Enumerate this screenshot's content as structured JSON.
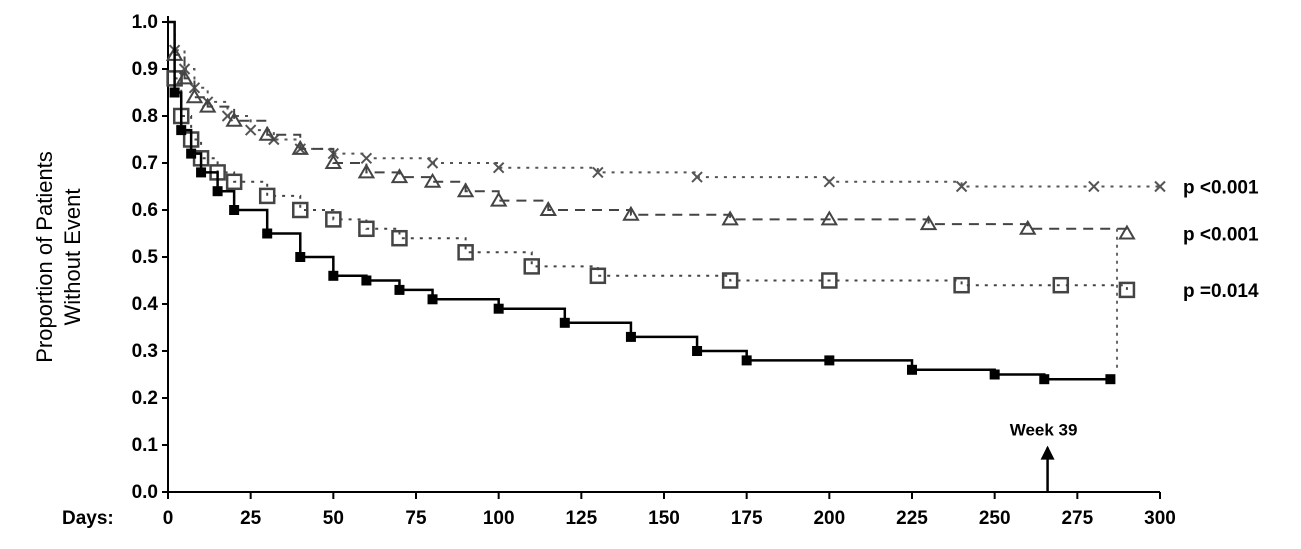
{
  "chart_data": {
    "type": "line",
    "title": "",
    "xlabel": "Days",
    "ylabel_lines": [
      "Proportion of Patients",
      "Without Event"
    ],
    "xlim": [
      0,
      300
    ],
    "ylim": [
      0.0,
      1.0
    ],
    "x_ticks": [
      0,
      25,
      50,
      75,
      100,
      125,
      150,
      175,
      200,
      225,
      250,
      275,
      300
    ],
    "x_tick_labels": [
      "0",
      "25",
      "50",
      "75",
      "100",
      "125",
      "150",
      "175",
      "200",
      "225",
      "250",
      "275",
      "300"
    ],
    "y_ticks": [
      0.0,
      0.1,
      0.2,
      0.3,
      0.4,
      0.5,
      0.6,
      0.7,
      0.8,
      0.9,
      1.0
    ],
    "y_tick_labels": [
      "0.0",
      "0.1",
      "0.2",
      "0.3",
      "0.4",
      "0.5",
      "0.6",
      "0.7",
      "0.8",
      "0.9",
      "1.0"
    ],
    "grid": false,
    "legend": "none",
    "series": [
      {
        "style": "dotted",
        "marker": "x",
        "color": "#555555",
        "x": [
          0,
          2,
          5,
          8,
          12,
          18,
          25,
          32,
          40,
          50,
          60,
          80,
          100,
          130,
          160,
          200,
          240,
          280,
          300
        ],
        "y": [
          1.0,
          0.94,
          0.9,
          0.86,
          0.83,
          0.8,
          0.77,
          0.75,
          0.73,
          0.72,
          0.71,
          0.7,
          0.69,
          0.68,
          0.67,
          0.66,
          0.65,
          0.65,
          0.65
        ],
        "p_value": "p <0.001"
      },
      {
        "style": "dashed",
        "marker": "triangle",
        "color": "#444444",
        "x": [
          0,
          2,
          5,
          8,
          12,
          20,
          30,
          40,
          50,
          60,
          70,
          80,
          90,
          100,
          115,
          140,
          170,
          200,
          230,
          260,
          290
        ],
        "y": [
          1.0,
          0.93,
          0.88,
          0.84,
          0.82,
          0.79,
          0.76,
          0.73,
          0.7,
          0.68,
          0.67,
          0.66,
          0.64,
          0.62,
          0.6,
          0.59,
          0.58,
          0.58,
          0.57,
          0.56,
          0.55
        ],
        "p_value": "p <0.001"
      },
      {
        "style": "dotted",
        "marker": "square",
        "color": "#444444",
        "x": [
          0,
          2,
          4,
          7,
          10,
          15,
          20,
          30,
          40,
          50,
          60,
          70,
          90,
          110,
          130,
          170,
          200,
          240,
          270,
          290
        ],
        "y": [
          1.0,
          0.88,
          0.8,
          0.75,
          0.71,
          0.68,
          0.66,
          0.63,
          0.6,
          0.58,
          0.56,
          0.54,
          0.51,
          0.48,
          0.46,
          0.45,
          0.45,
          0.44,
          0.44,
          0.43
        ],
        "p_value": "p =0.014"
      },
      {
        "style": "solid",
        "marker": "circle",
        "color": "#000000",
        "x": [
          0,
          2,
          4,
          7,
          10,
          15,
          20,
          30,
          40,
          50,
          60,
          70,
          80,
          100,
          120,
          140,
          160,
          175,
          200,
          225,
          250,
          265,
          285
        ],
        "y": [
          1.0,
          0.85,
          0.77,
          0.72,
          0.68,
          0.64,
          0.6,
          0.55,
          0.5,
          0.46,
          0.45,
          0.43,
          0.41,
          0.39,
          0.36,
          0.33,
          0.3,
          0.28,
          0.28,
          0.26,
          0.25,
          0.24,
          0.24
        ]
      }
    ],
    "annotations": [
      {
        "text": "Week 39",
        "x": 266,
        "y": 0.12,
        "arrow": "up"
      }
    ]
  }
}
